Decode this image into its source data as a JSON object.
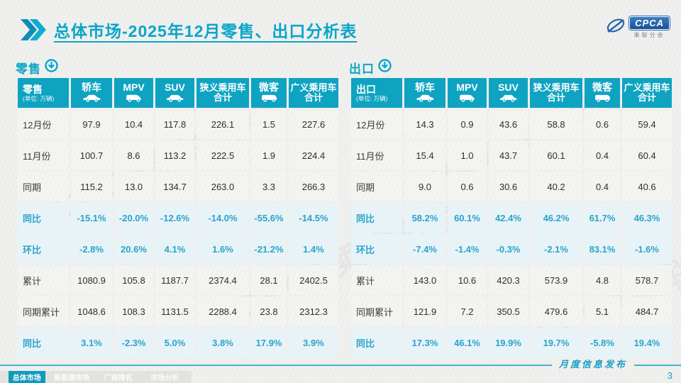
{
  "title": "总体市场-2025年12月零售、出口分析表",
  "logo": {
    "name": "CPCA",
    "subtitle": "乘联分会"
  },
  "watermark": "CPCA乘联分会",
  "colors": {
    "teal": "#0fa3c2",
    "teal_text": "#2aa4c8"
  },
  "tables": [
    {
      "section_label": "零售",
      "corner_label": "零售",
      "unit": "(单位: 万辆)",
      "columns": [
        {
          "label": "轿车",
          "icon": "sedan-icon"
        },
        {
          "label": "MPV",
          "icon": "mpv-icon"
        },
        {
          "label": "SUV",
          "icon": "suv-icon"
        },
        {
          "label": "狭义乘用车",
          "label2": "合计"
        },
        {
          "label": "微客",
          "icon": "microvan-icon"
        },
        {
          "label": "广义乘用车",
          "label2": "合计"
        }
      ],
      "rows": [
        {
          "label": "12月份",
          "style": "plain",
          "values": [
            "97.9",
            "10.4",
            "117.8",
            "226.1",
            "1.5",
            "227.6"
          ]
        },
        {
          "label": "11月份",
          "style": "plain",
          "values": [
            "100.7",
            "8.6",
            "113.2",
            "222.5",
            "1.9",
            "224.4"
          ]
        },
        {
          "label": "同期",
          "style": "plain",
          "values": [
            "115.2",
            "13.0",
            "134.7",
            "263.0",
            "3.3",
            "266.3"
          ]
        },
        {
          "label": "同比",
          "style": "pct",
          "values": [
            "-15.1%",
            "-20.0%",
            "-12.6%",
            "-14.0%",
            "-55.6%",
            "-14.5%"
          ]
        },
        {
          "label": "环比",
          "style": "pct",
          "values": [
            "-2.8%",
            "20.6%",
            "4.1%",
            "1.6%",
            "-21.2%",
            "1.4%"
          ]
        },
        {
          "label": "累计",
          "style": "plain",
          "values": [
            "1080.9",
            "105.8",
            "1187.7",
            "2374.4",
            "28.1",
            "2402.5"
          ]
        },
        {
          "label": "同期累计",
          "style": "plain",
          "values": [
            "1048.6",
            "108.3",
            "1131.5",
            "2288.4",
            "23.8",
            "2312.3"
          ]
        },
        {
          "label": "同比",
          "style": "pct",
          "values": [
            "3.1%",
            "-2.3%",
            "5.0%",
            "3.8%",
            "17.9%",
            "3.9%"
          ]
        }
      ]
    },
    {
      "section_label": "出口",
      "corner_label": "出口",
      "unit": "(单位: 万辆)",
      "columns": [
        {
          "label": "轿车",
          "icon": "sedan-icon"
        },
        {
          "label": "MPV",
          "icon": "mpv-icon"
        },
        {
          "label": "SUV",
          "icon": "suv-icon"
        },
        {
          "label": "狭义乘用车",
          "label2": "合计"
        },
        {
          "label": "微客",
          "icon": "microvan-icon"
        },
        {
          "label": "广义乘用车",
          "label2": "合计"
        }
      ],
      "rows": [
        {
          "label": "12月份",
          "style": "plain",
          "values": [
            "14.3",
            "0.9",
            "43.6",
            "58.8",
            "0.6",
            "59.4"
          ]
        },
        {
          "label": "11月份",
          "style": "plain",
          "values": [
            "15.4",
            "1.0",
            "43.7",
            "60.1",
            "0.4",
            "60.4"
          ]
        },
        {
          "label": "同期",
          "style": "plain",
          "values": [
            "9.0",
            "0.6",
            "30.6",
            "40.2",
            "0.4",
            "40.6"
          ]
        },
        {
          "label": "同比",
          "style": "pct",
          "values": [
            "58.2%",
            "60.1%",
            "42.4%",
            "46.2%",
            "61.7%",
            "46.3%"
          ]
        },
        {
          "label": "环比",
          "style": "pct",
          "values": [
            "-7.4%",
            "-1.4%",
            "-0.3%",
            "-2.1%",
            "83.1%",
            "-1.6%"
          ]
        },
        {
          "label": "累计",
          "style": "plain",
          "values": [
            "143.0",
            "10.6",
            "420.3",
            "573.9",
            "4.8",
            "578.7"
          ]
        },
        {
          "label": "同期累计",
          "style": "plain",
          "values": [
            "121.9",
            "7.2",
            "350.5",
            "479.6",
            "5.1",
            "484.7"
          ]
        },
        {
          "label": "同比",
          "style": "pct",
          "values": [
            "17.3%",
            "46.1%",
            "19.9%",
            "19.7%",
            "-5.8%",
            "19.4%"
          ]
        }
      ]
    }
  ],
  "footer": {
    "tabs": [
      {
        "label": "总体市场",
        "name": "tab-overall-market",
        "active": true
      },
      {
        "label": "新能源市场",
        "name": "tab-nev-market",
        "active": false
      },
      {
        "label": "厂商排名",
        "name": "tab-manufacturer-ranking",
        "active": false
      },
      {
        "label": "市场分析",
        "name": "tab-market-analysis",
        "active": false
      }
    ],
    "publication": "月度信息发布",
    "page": "3"
  }
}
